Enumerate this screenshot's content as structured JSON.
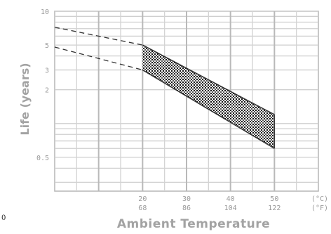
{
  "chart_data": {
    "type": "area",
    "title": "",
    "xlabel": "Ambient Temperature",
    "ylabel": "Life (years)",
    "y_scale": "log",
    "ylim": [
      0.25,
      10
    ],
    "xlim": [
      0,
      60
    ],
    "grid": true,
    "x_ticks": [
      {
        "c": "20",
        "f": "68"
      },
      {
        "c": "30",
        "f": "86"
      },
      {
        "c": "40",
        "f": "104"
      },
      {
        "c": "50",
        "f": "122"
      }
    ],
    "x_unit_labels": {
      "c": "(°C)",
      "f": "(°F)"
    },
    "y_tick_labels": [
      "10",
      "5",
      "3",
      "2",
      "0.5"
    ],
    "y_tick_values": [
      10,
      5,
      3,
      2,
      0.5
    ],
    "upper_bound": {
      "x": [
        0,
        20,
        50
      ],
      "y": [
        7.2,
        5.0,
        1.2
      ]
    },
    "lower_bound": {
      "x": [
        0,
        20,
        50
      ],
      "y": [
        4.8,
        3.0,
        0.6
      ]
    },
    "shaded_range_x": [
      20,
      50
    ]
  },
  "corner_label": "0"
}
